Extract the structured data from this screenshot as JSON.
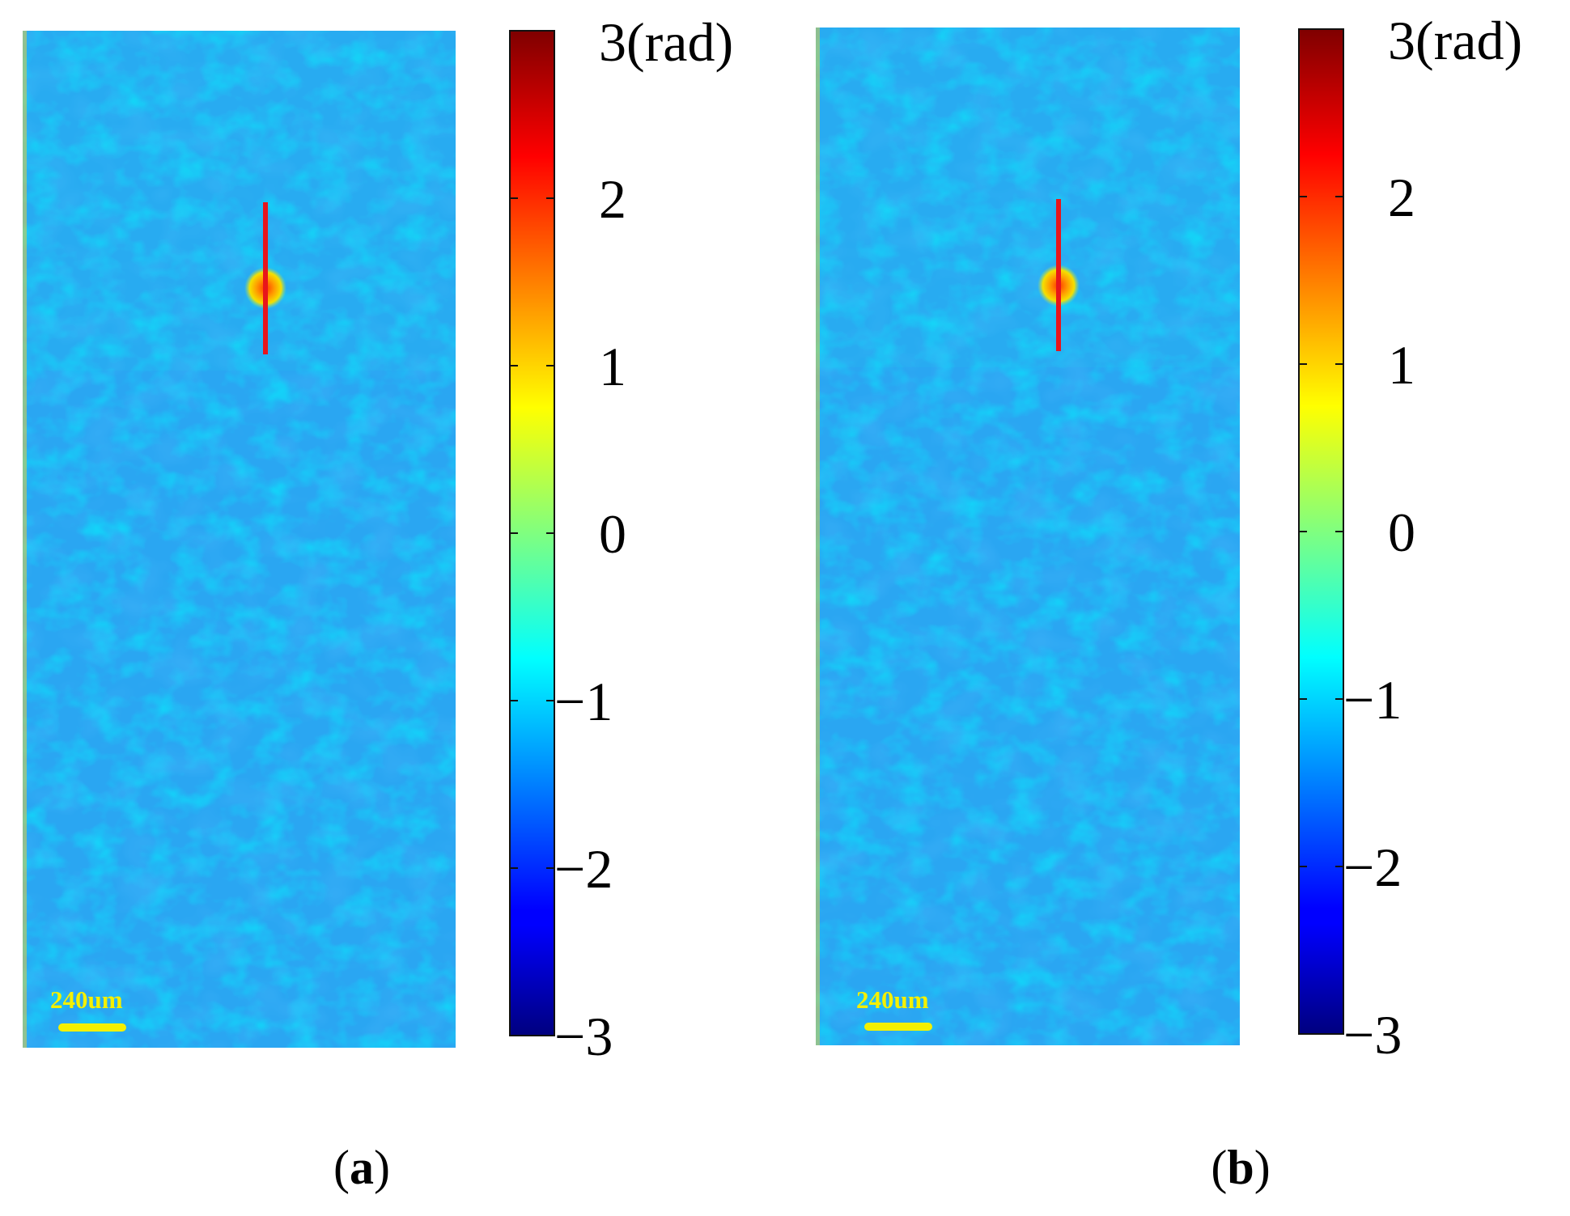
{
  "chart_data": [
    {
      "type": "heatmap",
      "panel_label": "(a)",
      "label_open": "(",
      "label_letter": "a",
      "label_close": ")",
      "colormap": "jet",
      "colorbar_range": [
        -3,
        3
      ],
      "colorbar_ticks": [
        -3,
        -2,
        -1,
        0,
        1,
        2,
        3
      ],
      "colorbar_tick_labels": [
        "−3",
        "−2",
        "−1",
        "0",
        "1",
        "2",
        "3(rad)"
      ],
      "background_phase": -1.3,
      "defect_phase": 1.5,
      "scale_bar_label": "240um",
      "marker_color": "#e8151b"
    },
    {
      "type": "heatmap",
      "panel_label": "(b)",
      "label_open": "(",
      "label_letter": "b",
      "label_close": ")",
      "colormap": "jet",
      "colorbar_range": [
        -3,
        3
      ],
      "colorbar_ticks": [
        -3,
        -2,
        -1,
        0,
        1,
        2,
        3
      ],
      "colorbar_tick_labels": [
        "−3",
        "−2",
        "−1",
        "0",
        "1",
        "2",
        "3(rad)"
      ],
      "background_phase": -1.3,
      "defect_phase": 1.5,
      "scale_bar_label": "240um",
      "marker_color": "#e8151b"
    }
  ],
  "colors": {
    "scale_bar": "#f4f000",
    "colorbar_border": "#111111"
  }
}
